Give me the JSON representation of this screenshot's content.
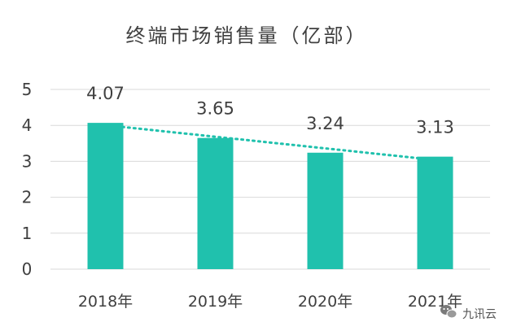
{
  "chart_data": {
    "type": "bar",
    "title": "终端市场销售量（亿部）",
    "categories": [
      "2018年",
      "2019年",
      "2020年",
      "2021年"
    ],
    "values": [
      4.07,
      3.65,
      3.24,
      3.13
    ],
    "data_labels": [
      "4.07",
      "3.65",
      "3.24",
      "3.13"
    ],
    "ylim": [
      0,
      5
    ],
    "yticks": [
      "0",
      "1",
      "2",
      "3",
      "4",
      "5"
    ],
    "grid": true,
    "trendline": "linear, dotted",
    "bar_color": "#20c1ad",
    "trend_color": "#20c1ad"
  },
  "watermark": {
    "text": "九讯云",
    "icon": "wechat-icon"
  }
}
